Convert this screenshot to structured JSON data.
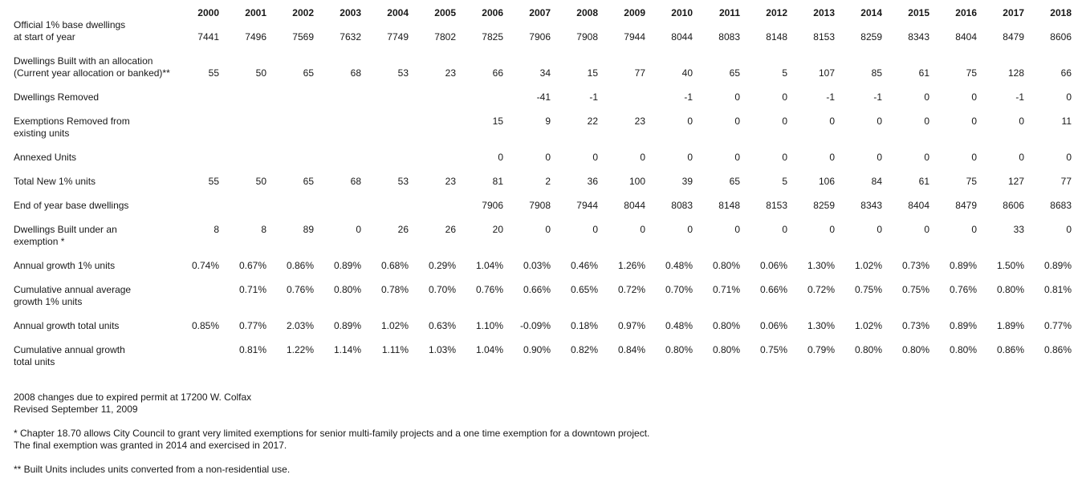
{
  "colors": {
    "text": "#181818",
    "background": "#ffffff"
  },
  "table": {
    "years": [
      "2000",
      "2001",
      "2002",
      "2003",
      "2004",
      "2005",
      "2006",
      "2007",
      "2008",
      "2009",
      "2010",
      "2011",
      "2012",
      "2013",
      "2014",
      "2015",
      "2016",
      "2017",
      "2018"
    ],
    "rows": [
      {
        "id": "official-base-dwellings",
        "label_lines": [
          "Official 1% base dwellings",
          "at start of year"
        ],
        "value_align": "bottom",
        "values": [
          "7441",
          "7496",
          "7569",
          "7632",
          "7749",
          "7802",
          "7825",
          "7906",
          "7908",
          "7944",
          "8044",
          "8083",
          "8148",
          "8153",
          "8259",
          "8343",
          "8404",
          "8479",
          "8606"
        ]
      },
      {
        "id": "dwellings-built-with-allocation",
        "label_lines": [
          "Dwellings Built with an allocation",
          "(Current year allocation or banked)**"
        ],
        "value_align": "bottom",
        "values": [
          "55",
          "50",
          "65",
          "68",
          "53",
          "23",
          "66",
          "34",
          "15",
          "77",
          "40",
          "65",
          "5",
          "107",
          "85",
          "61",
          "75",
          "128",
          "66"
        ]
      },
      {
        "id": "dwellings-removed",
        "label_lines": [
          "Dwellings Removed"
        ],
        "value_align": "bottom",
        "values": [
          "",
          "",
          "",
          "",
          "",
          "",
          "",
          "-41",
          "-1",
          "",
          "-1",
          "0",
          "0",
          "-1",
          "-1",
          "0",
          "0",
          "-1",
          "0"
        ]
      },
      {
        "id": "exemptions-removed",
        "label_lines": [
          "Exemptions Removed from",
          "existing units"
        ],
        "value_align": "top",
        "values": [
          "",
          "",
          "",
          "",
          "",
          "",
          "15",
          "9",
          "22",
          "23",
          "0",
          "0",
          "0",
          "0",
          "0",
          "0",
          "0",
          "0",
          "11"
        ]
      },
      {
        "id": "annexed-units",
        "label_lines": [
          "Annexed Units"
        ],
        "value_align": "bottom",
        "values": [
          "",
          "",
          "",
          "",
          "",
          "",
          "0",
          "0",
          "0",
          "0",
          "0",
          "0",
          "0",
          "0",
          "0",
          "0",
          "0",
          "0",
          "0"
        ]
      },
      {
        "id": "total-new-1pct-units",
        "label_lines": [
          "Total New 1% units"
        ],
        "value_align": "bottom",
        "values": [
          "55",
          "50",
          "65",
          "68",
          "53",
          "23",
          "81",
          "2",
          "36",
          "100",
          "39",
          "65",
          "5",
          "106",
          "84",
          "61",
          "75",
          "127",
          "77"
        ]
      },
      {
        "id": "end-of-year-base-dwellings",
        "label_lines": [
          "End of year base dwellings"
        ],
        "value_align": "bottom",
        "values": [
          "",
          "",
          "",
          "",
          "",
          "",
          "7906",
          "7908",
          "7944",
          "8044",
          "8083",
          "8148",
          "8153",
          "8259",
          "8343",
          "8404",
          "8479",
          "8606",
          "8683"
        ]
      },
      {
        "id": "dwellings-built-under-exemption",
        "label_lines": [
          "Dwellings Built under an",
          "exemption *"
        ],
        "value_align": "top",
        "values": [
          "8",
          "8",
          "89",
          "0",
          "26",
          "26",
          "20",
          "0",
          "0",
          "0",
          "0",
          "0",
          "0",
          "0",
          "0",
          "0",
          "0",
          "33",
          "0"
        ]
      },
      {
        "id": "annual-growth-1pct-units",
        "label_lines": [
          "Annual growth 1% units"
        ],
        "value_align": "bottom",
        "values": [
          "0.74%",
          "0.67%",
          "0.86%",
          "0.89%",
          "0.68%",
          "0.29%",
          "1.04%",
          "0.03%",
          "0.46%",
          "1.26%",
          "0.48%",
          "0.80%",
          "0.06%",
          "1.30%",
          "1.02%",
          "0.73%",
          "0.89%",
          "1.50%",
          "0.89%"
        ]
      },
      {
        "id": "cumulative-annual-average-growth-1pct-units",
        "label_lines": [
          "Cumulative annual average",
          "growth 1% units"
        ],
        "value_align": "top",
        "values": [
          "",
          "0.71%",
          "0.76%",
          "0.80%",
          "0.78%",
          "0.70%",
          "0.76%",
          "0.66%",
          "0.65%",
          "0.72%",
          "0.70%",
          "0.71%",
          "0.66%",
          "0.72%",
          "0.75%",
          "0.75%",
          "0.76%",
          "0.80%",
          "0.81%"
        ]
      },
      {
        "id": "annual-growth-total-units",
        "label_lines": [
          "Annual growth total units"
        ],
        "value_align": "bottom",
        "values": [
          "0.85%",
          "0.77%",
          "2.03%",
          "0.89%",
          "1.02%",
          "0.63%",
          "1.10%",
          "-0.09%",
          "0.18%",
          "0.97%",
          "0.48%",
          "0.80%",
          "0.06%",
          "1.30%",
          "1.02%",
          "0.73%",
          "0.89%",
          "1.89%",
          "0.77%"
        ]
      },
      {
        "id": "cumulative-annual-growth-total-units",
        "label_lines": [
          "Cumulative annual growth",
          "total units"
        ],
        "value_align": "top",
        "values": [
          "",
          "0.81%",
          "1.22%",
          "1.14%",
          "1.11%",
          "1.03%",
          "1.04%",
          "0.90%",
          "0.82%",
          "0.84%",
          "0.80%",
          "0.80%",
          "0.75%",
          "0.79%",
          "0.80%",
          "0.80%",
          "0.80%",
          "0.86%",
          "0.86%"
        ]
      }
    ]
  },
  "footnotes": [
    {
      "lines": [
        "2008 changes due to expired permit at 17200 W. Colfax",
        "Revised September 11, 2009"
      ]
    },
    {
      "lines": [
        "* Chapter 18.70 allows City Council to grant very limited exemptions for senior multi-family projects and a one time exemption for a downtown project.",
        "The final exemption was granted in 2014 and exercised in 2017."
      ]
    },
    {
      "lines": [
        "** Built Units includes units converted from a non-residential use."
      ]
    }
  ]
}
